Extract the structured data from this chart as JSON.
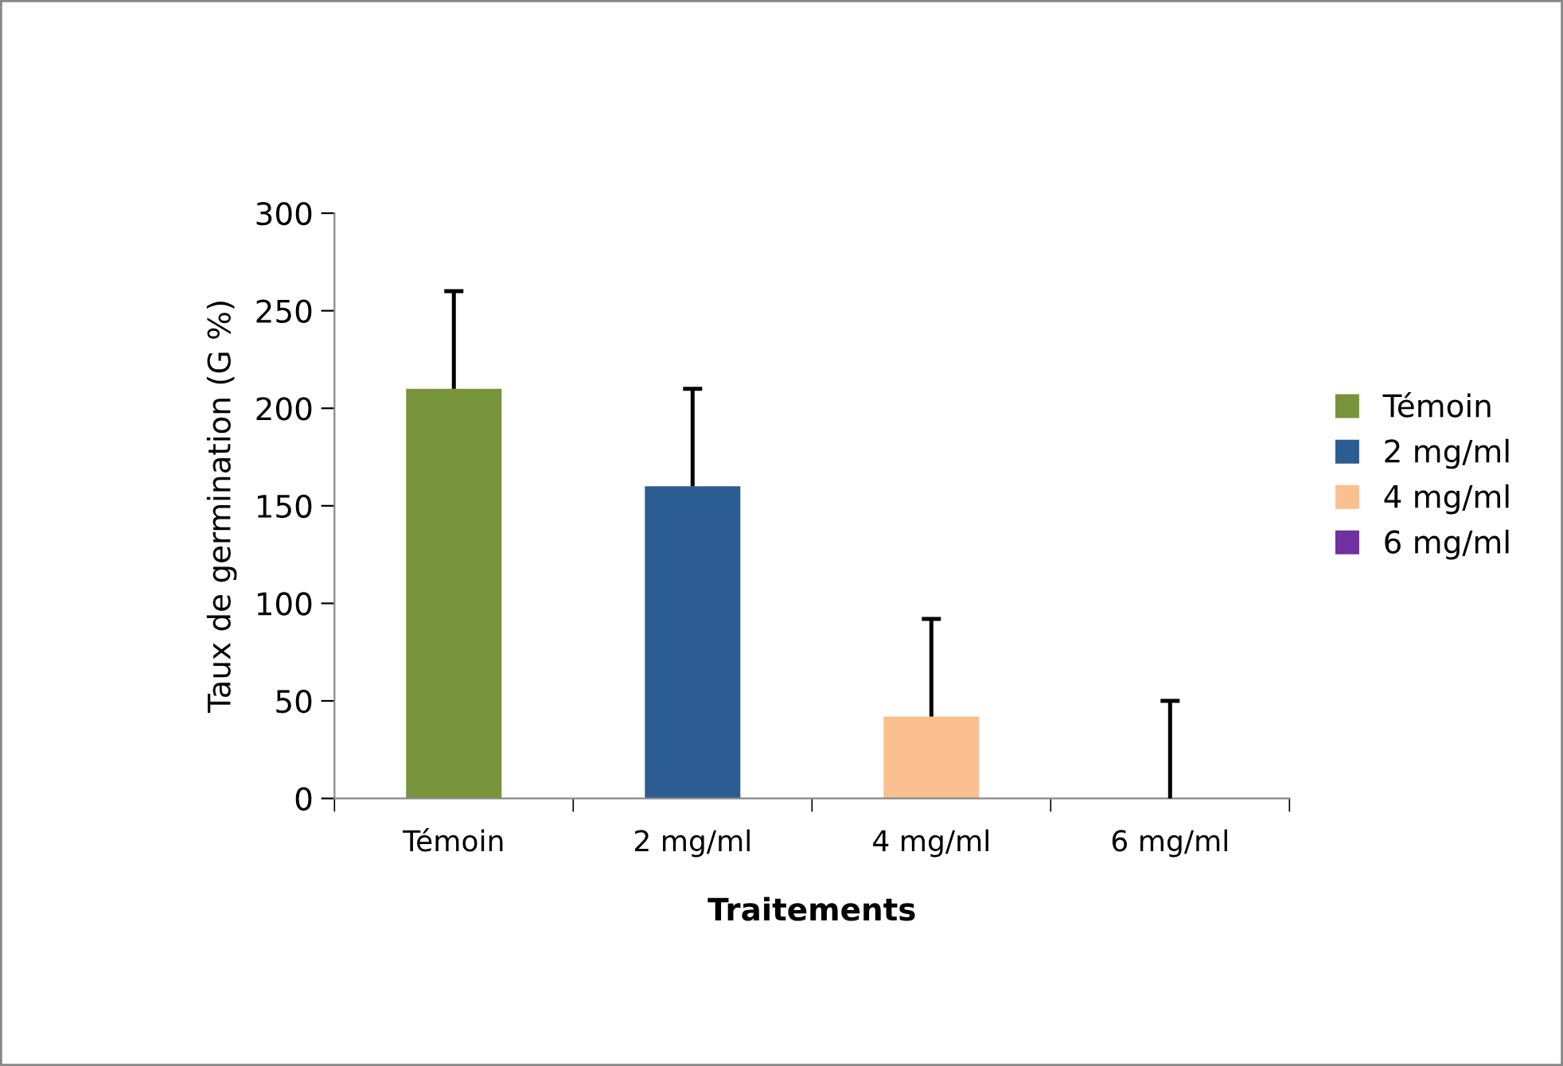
{
  "chart_data": {
    "type": "bar",
    "xlabel": "Traitements",
    "ylabel": "Taux de germination (G %)",
    "categories": [
      "Témoin",
      "2 mg/ml",
      "4 mg/ml",
      "6 mg/ml"
    ],
    "series": [
      {
        "name": "Témoin",
        "color": "#77933c",
        "values": [
          210,
          null,
          null,
          null
        ],
        "errors": [
          [
            210,
            260
          ],
          null,
          null,
          null
        ]
      },
      {
        "name": "2 mg/ml",
        "color": "#2c5d92",
        "values": [
          null,
          160,
          null,
          null
        ],
        "errors": [
          null,
          [
            160,
            210
          ],
          null,
          null
        ]
      },
      {
        "name": "4 mg/ml",
        "color": "#fac090",
        "values": [
          null,
          null,
          42,
          null
        ],
        "errors": [
          null,
          null,
          [
            42,
            92
          ],
          null
        ]
      },
      {
        "name": "6 mg/ml",
        "color": "#7030a0",
        "values": [
          null,
          null,
          null,
          0
        ],
        "errors": [
          null,
          null,
          null,
          [
            0,
            50
          ]
        ]
      }
    ],
    "ylim": [
      0,
      300
    ],
    "yticks": [
      0,
      50,
      100,
      150,
      200,
      250,
      300
    ],
    "grid": false,
    "legend": "right"
  }
}
